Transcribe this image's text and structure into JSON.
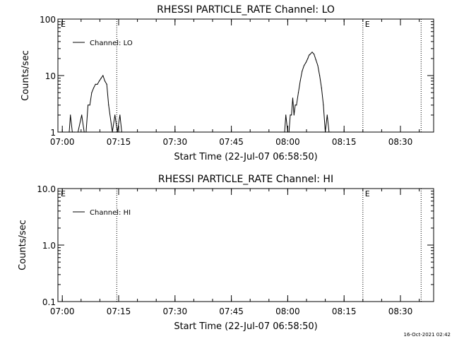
{
  "chart_data": [
    {
      "type": "line",
      "title": "RHESSI PARTICLE_RATE Channel: LO",
      "xlabel": "Start Time (22-Jul-07 06:58:50)",
      "ylabel": "Counts/sec",
      "yscale": "log",
      "ylim": [
        1,
        100
      ],
      "xlim": [
        "06:58:50",
        "08:38:50"
      ],
      "ytick_labels": [
        "1",
        "10",
        "100"
      ],
      "ytick_values": [
        1,
        10,
        100
      ],
      "xtick_labels": [
        "07:00",
        "07:15",
        "07:30",
        "07:45",
        "08:00",
        "08:15",
        "08:30"
      ],
      "legend_position": "top-left",
      "grid": false,
      "series": [
        {
          "name": "Channel: LO",
          "x": [
            "07:01:50",
            "07:02:10",
            "07:02:40",
            "07:03:10",
            "07:04:10",
            "07:05:10",
            "07:05:50",
            "07:06:20",
            "07:06:50",
            "07:07:20",
            "07:07:50",
            "07:08:20",
            "07:08:50",
            "07:09:20",
            "07:09:50",
            "07:10:20",
            "07:10:50",
            "07:11:20",
            "07:11:50",
            "07:12:20",
            "07:13:20",
            "07:14:00",
            "07:14:40",
            "07:15:20",
            "07:15:50",
            "07:59:10",
            "07:59:30",
            "08:00:00",
            "08:00:20",
            "08:00:40",
            "08:01:00",
            "08:01:20",
            "08:01:40",
            "08:02:00",
            "08:02:20",
            "08:02:50",
            "08:03:20",
            "08:03:50",
            "08:04:20",
            "08:04:50",
            "08:05:20",
            "08:05:40",
            "08:06:00",
            "08:06:30",
            "08:07:00",
            "08:07:30",
            "08:08:00",
            "08:08:30",
            "08:09:00",
            "08:09:30",
            "08:10:00",
            "08:10:30",
            "08:11:00",
            "08:11:30"
          ],
          "y": [
            1,
            2,
            1,
            1,
            1,
            2,
            1,
            1,
            3,
            3,
            5,
            6,
            7,
            7,
            8,
            9,
            10,
            8,
            7,
            3,
            1,
            2,
            1,
            2,
            1,
            1,
            2,
            1,
            1,
            2,
            2,
            4,
            2,
            3,
            3,
            5,
            8,
            12,
            15,
            17,
            20,
            23,
            24,
            26,
            24,
            19,
            15,
            10,
            6,
            3,
            1,
            2,
            1,
            1
          ]
        }
      ],
      "annotations": [
        "E",
        "E"
      ],
      "vlines": [
        "07:14:30",
        "08:20:00",
        "08:35:30"
      ]
    },
    {
      "type": "line",
      "title": "RHESSI PARTICLE_RATE Channel: HI",
      "xlabel": "Start Time (22-Jul-07 06:58:50)",
      "ylabel": "Counts/sec",
      "yscale": "log",
      "ylim": [
        0.1,
        10
      ],
      "xlim": [
        "06:58:50",
        "08:38:50"
      ],
      "ytick_labels": [
        "0.1",
        "1.0",
        "10.0"
      ],
      "ytick_values": [
        0.1,
        1,
        10
      ],
      "xtick_labels": [
        "07:00",
        "07:15",
        "07:30",
        "07:45",
        "08:00",
        "08:15",
        "08:30"
      ],
      "legend_position": "top-left",
      "grid": false,
      "series": [
        {
          "name": "Channel: HI",
          "x": [],
          "y": []
        }
      ],
      "annotations": [
        "E",
        "E"
      ],
      "vlines": [
        "07:14:30",
        "08:20:00",
        "08:35:30"
      ]
    }
  ],
  "footer": {
    "timestamp": "16-Oct-2021 02:42"
  }
}
